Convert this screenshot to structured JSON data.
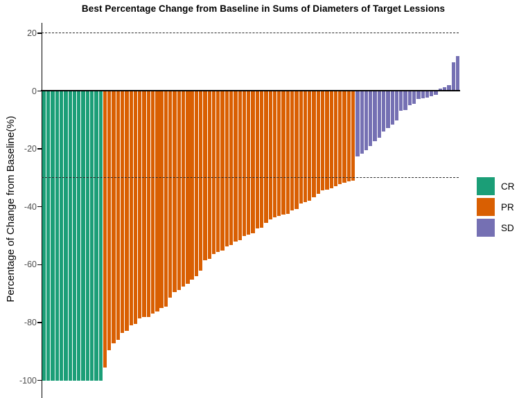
{
  "chart_data": {
    "type": "bar",
    "subtype": "waterfall",
    "title": "Best Percentage Change from Baseline in Sums of Diameters of Target Lessions",
    "xlabel": "",
    "ylabel": "Percentage of Change from Baseline(%)",
    "ylim": [
      -105,
      25
    ],
    "yticks": [
      20,
      0,
      -20,
      -40,
      -60,
      -80,
      -100
    ],
    "reference_lines": [
      20,
      -30
    ],
    "grid": false,
    "legend_position": "right",
    "series": [
      {
        "name": "CR",
        "color": "#1B9E77",
        "values": [
          -100,
          -100,
          -100,
          -100,
          -100,
          -100,
          -100,
          -100,
          -100,
          -100,
          -100,
          -100,
          -100,
          -100
        ]
      },
      {
        "name": "PR",
        "color": "#D95F02",
        "values": [
          -95.5,
          -89.5,
          -87.1,
          -85.9,
          -83.5,
          -83.0,
          -81.1,
          -80.6,
          -78.7,
          -78.2,
          -78.0,
          -76.8,
          -76.3,
          -75.1,
          -74.6,
          -71.5,
          -69.6,
          -68.7,
          -67.5,
          -66.7,
          -65.1,
          -63.9,
          -62.0,
          -58.4,
          -58.0,
          -56.4,
          -55.6,
          -55.2,
          -53.6,
          -53.3,
          -52.0,
          -51.6,
          -50.0,
          -49.6,
          -49.2,
          -47.6,
          -47.2,
          -45.6,
          -44.4,
          -43.6,
          -43.2,
          -42.8,
          -42.4,
          -41.2,
          -40.8,
          -38.8,
          -38.4,
          -38.0,
          -36.8,
          -35.6,
          -34.4,
          -34.0,
          -33.7,
          -32.8,
          -32.1,
          -31.7,
          -31.3,
          -30.9
        ]
      },
      {
        "name": "SD",
        "color": "#7570B3",
        "values": [
          -22.5,
          -21.7,
          -20.5,
          -18.9,
          -17.3,
          -16.1,
          -14.1,
          -12.9,
          -11.7,
          -10.1,
          -6.9,
          -6.5,
          -5.0,
          -4.5,
          -2.8,
          -2.6,
          -2.2,
          -1.7,
          -1.4,
          0.8,
          1.2,
          2.0,
          10.0,
          12.0
        ]
      }
    ]
  }
}
